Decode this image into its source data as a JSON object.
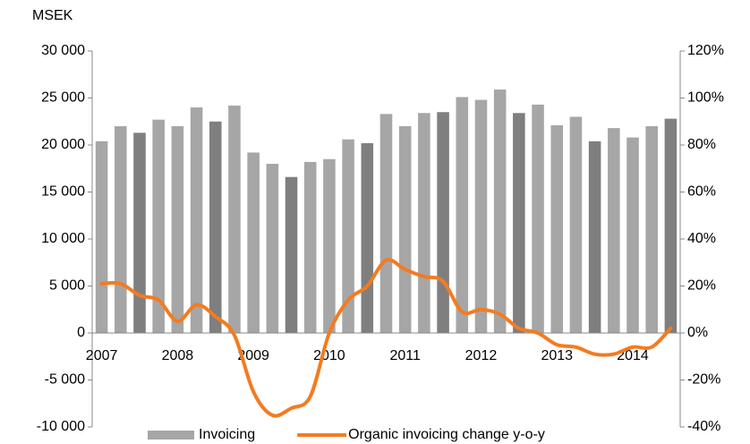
{
  "chart_data": {
    "type": "bar_line",
    "y_axis_label": "MSEK",
    "categories": [
      "2007",
      null,
      null,
      null,
      "2008",
      null,
      null,
      null,
      "2009",
      null,
      null,
      null,
      "2010",
      null,
      null,
      null,
      "2011",
      null,
      null,
      null,
      "2012",
      null,
      null,
      null,
      "2013",
      null,
      null,
      null,
      "2014",
      null,
      null
    ],
    "series": [
      {
        "name": "Invoicing",
        "type": "bar",
        "color": "#a6a6a6",
        "bar_colors": [
          "#a6a6a6",
          "#a6a6a6",
          "#7f7f7f",
          "#a6a6a6",
          "#a6a6a6",
          "#a6a6a6",
          "#7f7f7f",
          "#a6a6a6",
          "#a6a6a6",
          "#a6a6a6",
          "#7f7f7f",
          "#a6a6a6",
          "#a6a6a6",
          "#a6a6a6",
          "#7f7f7f",
          "#a6a6a6",
          "#a6a6a6",
          "#a6a6a6",
          "#7f7f7f",
          "#a6a6a6",
          "#a6a6a6",
          "#a6a6a6",
          "#7f7f7f",
          "#a6a6a6",
          "#a6a6a6",
          "#a6a6a6",
          "#7f7f7f",
          "#a6a6a6",
          "#a6a6a6",
          "#a6a6a6",
          "#7f7f7f"
        ],
        "values": [
          20400,
          22000,
          21300,
          22700,
          22000,
          24000,
          22500,
          24200,
          19200,
          18000,
          16600,
          18200,
          18500,
          20600,
          20200,
          23300,
          22000,
          23400,
          23500,
          25100,
          24800,
          25900,
          23400,
          24300,
          22100,
          23000,
          20400,
          21800,
          20800,
          22000,
          22800
        ]
      },
      {
        "name": "Organic invoicing change y-o-y",
        "type": "line",
        "color": "#f47b20",
        "axis": "y2",
        "values": [
          21,
          21,
          16,
          14,
          5,
          12,
          7,
          -1,
          -25,
          -35,
          -32,
          -27,
          0,
          14,
          20,
          31,
          27,
          24,
          22,
          9,
          10,
          8,
          2,
          0,
          -5,
          -6,
          -9,
          -9,
          -6,
          -6,
          2
        ]
      }
    ],
    "ylim": [
      -10000,
      30000
    ],
    "yticks": [
      {
        "value": -10000,
        "label": "-10 000"
      },
      {
        "value": -5000,
        "label": "-5 000"
      },
      0,
      {
        "value": 5000,
        "label": "5 000"
      },
      {
        "value": 10000,
        "label": "10 000"
      },
      {
        "value": 15000,
        "label": "15 000"
      },
      {
        "value": 20000,
        "label": "20 000"
      },
      {
        "value": 25000,
        "label": "25 000"
      },
      {
        "value": 30000,
        "label": "30 000"
      }
    ],
    "y2lim": [
      -40,
      120
    ],
    "y2ticks": [
      {
        "value": -40,
        "label": "-40%"
      },
      {
        "value": -20,
        "label": "-20%"
      },
      {
        "value": 0,
        "label": "0%"
      },
      {
        "value": 20,
        "label": "20%"
      },
      {
        "value": 40,
        "label": "40%"
      },
      {
        "value": 60,
        "label": "60%"
      },
      {
        "value": 80,
        "label": "80%"
      },
      {
        "value": 100,
        "label": "100%"
      },
      {
        "value": 120,
        "label": "120%"
      }
    ],
    "legend": "bottom"
  }
}
